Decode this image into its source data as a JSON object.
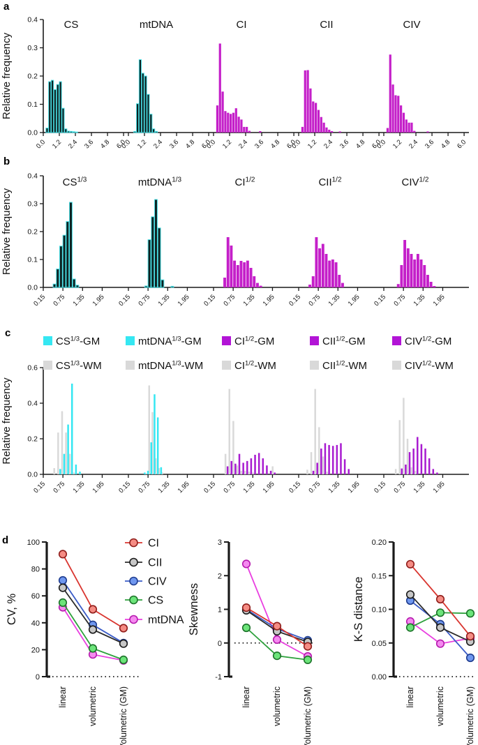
{
  "panel_labels": {
    "a": "a",
    "b": "b",
    "c": "c",
    "d": "d"
  },
  "colors": {
    "gm_cyan": "#35e7f2",
    "gm_purple": "#a81bd0",
    "legend_purple": "#b214d6",
    "wm_gray": "#d9d9d9",
    "magenta": "#c41fc9",
    "dark_fill": "#0e2020",
    "dark_edge": "#49e0e6",
    "axis": "#1a1a1a"
  },
  "chart_data": [
    {
      "id": "a",
      "type": "bar",
      "ylabel": "Relative frequency",
      "ylim": [
        0,
        0.4
      ],
      "yticks": [
        {
          "v": 0,
          "t": "0.0"
        },
        {
          "v": 0.1,
          "t": "0.1"
        },
        {
          "v": 0.2,
          "t": "0.2"
        },
        {
          "v": 0.3,
          "t": "0.3"
        },
        {
          "v": 0.4,
          "t": "0.4"
        }
      ],
      "xticks": [
        {
          "v": 0,
          "t": "0.0"
        },
        {
          "v": 1.2,
          "t": "1.2"
        },
        {
          "v": 2.4,
          "t": "2.4"
        },
        {
          "v": 3.6,
          "t": "3.6"
        },
        {
          "v": 4.8,
          "t": "4.8"
        },
        {
          "v": 6.0,
          "t": "6.0"
        }
      ],
      "subplots": [
        {
          "title": {
            "base": "CS",
            "sup": "",
            "suffix": ""
          },
          "style": "dark",
          "bin_start": 0.2,
          "bin_width": 0.2,
          "heights": [
            0.016,
            0.18,
            0.185,
            0.152,
            0.17,
            0.18,
            0.086,
            0.013,
            0.005,
            0.004,
            0.003,
            0.002
          ]
        },
        {
          "title": {
            "base": "mtDNA",
            "sup": "",
            "suffix": ""
          },
          "style": "dark",
          "bin_start": 0.4,
          "bin_width": 0.2,
          "heights": [
            0.004,
            0.102,
            0.258,
            0.21,
            0.2,
            0.135,
            0.065,
            0.013,
            0.004
          ]
        },
        {
          "title": {
            "base": "CI",
            "sup": "",
            "suffix": ""
          },
          "style": "magenta",
          "bin_start": 0.2,
          "bin_width": 0.2,
          "heights": [
            0.096,
            0.315,
            0.145,
            0.076,
            0.07,
            0.066,
            0.07,
            0.086,
            0.056,
            0.046,
            0.02,
            0.02,
            0.006,
            0,
            0,
            0,
            0.005
          ]
        },
        {
          "title": {
            "base": "CII",
            "sup": "",
            "suffix": ""
          },
          "style": "magenta",
          "bin_start": 0.2,
          "bin_width": 0.2,
          "heights": [
            0.02,
            0.22,
            0.221,
            0.156,
            0.11,
            0.105,
            0.08,
            0.055,
            0.035,
            0.018,
            0.01,
            0.005,
            0,
            0,
            0.004
          ]
        },
        {
          "title": {
            "base": "CIV",
            "sup": "",
            "suffix": ""
          },
          "style": "magenta",
          "bin_start": 0.2,
          "bin_width": 0.2,
          "heights": [
            0.016,
            0.276,
            0.17,
            0.132,
            0.13,
            0.096,
            0.07,
            0.046,
            0.035,
            0.035,
            0.006,
            0,
            0,
            0,
            0,
            0.004
          ]
        }
      ]
    },
    {
      "id": "b",
      "type": "bar",
      "ylabel": "Relative frequency",
      "ylim": [
        0,
        0.4
      ],
      "yticks": [
        {
          "v": 0,
          "t": "0.0"
        },
        {
          "v": 0.1,
          "t": "0.1"
        },
        {
          "v": 0.2,
          "t": "0.2"
        },
        {
          "v": 0.3,
          "t": "0.3"
        },
        {
          "v": 0.4,
          "t": "0.4"
        }
      ],
      "xticks": [
        {
          "v": 0.15,
          "t": "0.15"
        },
        {
          "v": 0.75,
          "t": "0.75"
        },
        {
          "v": 1.35,
          "t": "1.35"
        },
        {
          "v": 1.95,
          "t": "1.95"
        }
      ],
      "subplots": [
        {
          "title": {
            "base": "CS",
            "sup": "1/3",
            "suffix": ""
          },
          "style": "dark",
          "bin_start": 0.45,
          "bin_width": 0.1,
          "heights": [
            0.012,
            0.066,
            0.148,
            0.187,
            0.236,
            0.305,
            0.03,
            0.008
          ]
        },
        {
          "title": {
            "base": "mtDNA",
            "sup": "1/3",
            "suffix": ""
          },
          "style": "dark",
          "bin_start": 0.65,
          "bin_width": 0.1,
          "heights": [
            0.005,
            0.171,
            0.253,
            0.315,
            0.213,
            0.027,
            0,
            0,
            0.004
          ]
        },
        {
          "title": {
            "base": "CI",
            "sup": "1/2",
            "suffix": ""
          },
          "style": "magenta",
          "bin_start": 0.45,
          "bin_width": 0.1,
          "heights": [
            0.035,
            0.18,
            0.15,
            0.096,
            0.08,
            0.095,
            0.09,
            0.096,
            0.07,
            0.04,
            0.016,
            0.006
          ]
        },
        {
          "title": {
            "base": "CII",
            "sup": "1/2",
            "suffix": ""
          },
          "style": "magenta",
          "bin_start": 0.45,
          "bin_width": 0.1,
          "heights": [
            0.01,
            0.04,
            0.18,
            0.14,
            0.156,
            0.12,
            0.096,
            0.1,
            0.09,
            0.045,
            0.016
          ]
        },
        {
          "title": {
            "base": "CIV",
            "sup": "1/2",
            "suffix": ""
          },
          "style": "magenta",
          "bin_start": 0.55,
          "bin_width": 0.1,
          "heights": [
            0.012,
            0.08,
            0.17,
            0.14,
            0.12,
            0.1,
            0.12,
            0.1,
            0.08,
            0.045,
            0.02,
            0.005
          ]
        }
      ]
    },
    {
      "id": "c",
      "type": "bar-overlay",
      "ylabel": "Relative frequency",
      "ylim": [
        0,
        0.6
      ],
      "yticks": [
        {
          "v": 0,
          "t": "0.0"
        },
        {
          "v": 0.2,
          "t": "0.2"
        },
        {
          "v": 0.4,
          "t": "0.4"
        },
        {
          "v": 0.6,
          "t": "0.6"
        }
      ],
      "xticks": [
        {
          "v": 0.15,
          "t": "0.15"
        },
        {
          "v": 0.75,
          "t": "0.75"
        },
        {
          "v": 1.35,
          "t": "1.35"
        },
        {
          "v": 1.95,
          "t": "1.95"
        }
      ],
      "legend_rows": [
        [
          {
            "base": "CS",
            "sup": "1/3",
            "suffix": "-GM",
            "color": "#35e7f2"
          },
          {
            "base": "mtDNA",
            "sup": "1/3",
            "suffix": "-GM",
            "color": "#35e7f2"
          },
          {
            "base": "CI",
            "sup": "1/2",
            "suffix": "-GM",
            "color": "#b214d6"
          },
          {
            "base": "CII",
            "sup": "1/2",
            "suffix": "-GM",
            "color": "#b214d6"
          },
          {
            "base": "CIV",
            "sup": "1/2",
            "suffix": "-GM",
            "color": "#b214d6"
          }
        ],
        [
          {
            "base": "CS",
            "sup": "1/3",
            "suffix": "-WM",
            "color": "#d9d9d9"
          },
          {
            "base": "mtDNA",
            "sup": "1/3",
            "suffix": "-WM",
            "color": "#d9d9d9"
          },
          {
            "base": "CI",
            "sup": "1/2",
            "suffix": "-WM",
            "color": "#d9d9d9"
          },
          {
            "base": "CII",
            "sup": "1/2",
            "suffix": "-WM",
            "color": "#d9d9d9"
          },
          {
            "base": "CIV",
            "sup": "1/2",
            "suffix": "-WM",
            "color": "#d9d9d9"
          }
        ]
      ],
      "subplots": [
        {
          "name": "CS",
          "gm_color": "#35e7f2",
          "x0": 0.52,
          "pitch": 0.12,
          "wm": [
            0.035,
            0.235,
            0.355,
            0.235,
            0.115,
            0.01,
            0
          ],
          "gm": [
            0,
            0.03,
            0.115,
            0.28,
            0.51,
            0.055,
            0.015
          ]
        },
        {
          "name": "mtDNA",
          "gm_color": "#35e7f2",
          "x0": 0.62,
          "pitch": 0.1,
          "wm": [
            0,
            0.005,
            0.5,
            0.35,
            0.09,
            0.035,
            0.01
          ],
          "gm": [
            0.01,
            0.02,
            0.18,
            0.45,
            0.32,
            0.04,
            0
          ]
        },
        {
          "name": "CI",
          "gm_color": "#a81bd0",
          "x0": 0.55,
          "pitch": 0.12,
          "wm": [
            0.115,
            0.48,
            0.3,
            0.05,
            0.02,
            0.02,
            0.015,
            0.01,
            0,
            0,
            0,
            0,
            0.045
          ],
          "gm": [
            0.045,
            0.075,
            0.06,
            0.115,
            0.065,
            0.075,
            0.09,
            0.11,
            0.12,
            0.09,
            0.05,
            0.02,
            0.01
          ]
        },
        {
          "name": "CII",
          "gm_color": "#a81bd0",
          "x0": 0.45,
          "pitch": 0.12,
          "wm": [
            0.026,
            0.125,
            0.48,
            0.265,
            0.1,
            0.015,
            0,
            0,
            0,
            0,
            0
          ],
          "gm": [
            0,
            0.02,
            0.065,
            0.145,
            0.175,
            0.165,
            0.16,
            0.165,
            0.175,
            0.085,
            0.03
          ]
        },
        {
          "name": "CIV",
          "gm_color": "#a81bd0",
          "x0": 0.55,
          "pitch": 0.12,
          "wm": [
            0.03,
            0.305,
            0.43,
            0.2,
            0.04,
            0.02,
            0,
            0,
            0,
            0,
            0,
            0
          ],
          "gm": [
            0,
            0.033,
            0.055,
            0.125,
            0.145,
            0.21,
            0.17,
            0.145,
            0.09,
            0.03,
            0.01,
            0
          ]
        }
      ]
    },
    {
      "id": "d",
      "type": "line",
      "xcats": [
        "linear",
        "volumetric",
        "Volumetric (GM)"
      ],
      "series": [
        {
          "name": "CI",
          "line": "#d9352f",
          "fill": "#f58c84",
          "edge": "#8f1d1a"
        },
        {
          "name": "CII",
          "line": "#2b2b2b",
          "fill": "#c7c7c7",
          "edge": "#1a1a1a"
        },
        {
          "name": "CIV",
          "line": "#3a5bc7",
          "fill": "#6f97ef",
          "edge": "#1f3d8f"
        },
        {
          "name": "CS",
          "line": "#2da13c",
          "fill": "#6ce47a",
          "edge": "#1c7229"
        },
        {
          "name": "mtDNA",
          "line": "#e93fe0",
          "fill": "#f58af0",
          "edge": "#b519ad"
        }
      ],
      "draw_order": [
        "mtDNA",
        "CS",
        "CIV",
        "CII",
        "CI"
      ],
      "plots": [
        {
          "ylabel": "CV, %",
          "ymin": 0,
          "ymax": 100,
          "yticks": [
            {
              "v": 0,
              "t": "0"
            },
            {
              "v": 20,
              "t": "20"
            },
            {
              "v": 40,
              "t": "40"
            },
            {
              "v": 60,
              "t": "60"
            },
            {
              "v": 80,
              "t": "80"
            },
            {
              "v": 100,
              "t": "100"
            }
          ],
          "values": {
            "CI": [
              91,
              50,
              36
            ],
            "CII": [
              66,
              35,
              24.5
            ],
            "CIV": [
              71.5,
              38.5,
              25
            ],
            "CS": [
              55,
              21,
              12.5
            ],
            "mtDNA": [
              51.5,
              16.5,
              12
            ]
          }
        },
        {
          "ylabel": "Skewness",
          "ymin": -1,
          "ymax": 3,
          "yticks": [
            {
              "v": -1,
              "t": "-1"
            },
            {
              "v": 0,
              "t": "0"
            },
            {
              "v": 1,
              "t": "1"
            },
            {
              "v": 2,
              "t": "2"
            },
            {
              "v": 3,
              "t": "3"
            }
          ],
          "values": {
            "CI": [
              1.05,
              0.5,
              -0.1
            ],
            "CII": [
              0.97,
              0.35,
              0.03
            ],
            "CIV": [
              1.0,
              0.42,
              0.08
            ],
            "CS": [
              0.45,
              -0.38,
              -0.5
            ],
            "mtDNA": [
              2.35,
              0.1,
              -0.4
            ]
          }
        },
        {
          "ylabel": "K-S distance",
          "ymin": 0,
          "ymax": 0.2,
          "yticks": [
            {
              "v": 0,
              "t": "0.00"
            },
            {
              "v": 0.05,
              "t": "0.05"
            },
            {
              "v": 0.1,
              "t": "0.10"
            },
            {
              "v": 0.15,
              "t": "0.15"
            },
            {
              "v": 0.2,
              "t": "0.20"
            }
          ],
          "values": {
            "CI": [
              0.167,
              0.115,
              0.06
            ],
            "CII": [
              0.122,
              0.073,
              0.052
            ],
            "CIV": [
              0.113,
              0.078,
              0.028
            ],
            "CS": [
              0.073,
              0.095,
              0.094
            ],
            "mtDNA": [
              0.082,
              0.049,
              0.057
            ]
          }
        }
      ]
    }
  ]
}
